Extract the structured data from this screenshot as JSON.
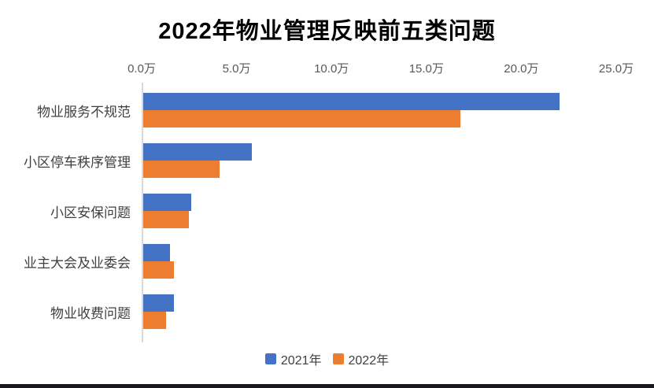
{
  "title": "2022年物业管理反映前五类问题",
  "chart_data": {
    "type": "bar",
    "orientation": "horizontal",
    "title": "2022年物业管理反映前五类问题",
    "categories": [
      "物业服务不规范",
      "小区停车秩序管理",
      "小区安保问题",
      "业主大会及业委会",
      "物业收费问题"
    ],
    "series": [
      {
        "name": "2021年",
        "color": "#4472C4",
        "values": [
          22.0,
          5.8,
          2.6,
          1.5,
          1.7
        ]
      },
      {
        "name": "2022年",
        "color": "#ED7D31",
        "values": [
          16.8,
          4.1,
          2.5,
          1.7,
          1.3
        ]
      }
    ],
    "unit": "万",
    "x_ticks": [
      "0.0万",
      "5.0万",
      "10.0万",
      "15.0万",
      "20.0万",
      "25.0万"
    ],
    "xlim": [
      0,
      25
    ],
    "grid": false,
    "legend_position": "bottom"
  },
  "colors": {
    "series_2021": "#4472C4",
    "series_2022": "#ED7D31",
    "axis_line": "#d9d9d9",
    "tick_label": "#595959",
    "category_label": "#404040",
    "title_text": "#000000",
    "window_edge": "#17171f"
  }
}
